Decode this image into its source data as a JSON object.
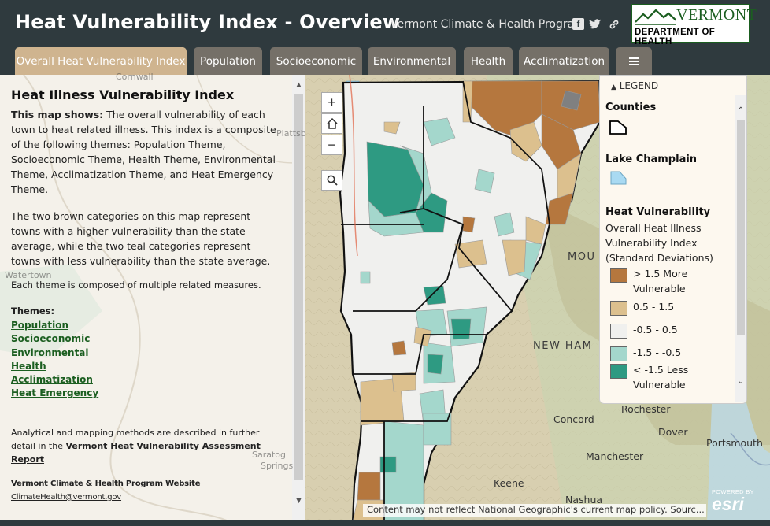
{
  "header": {
    "title": "Heat Vulnerability Index - Overview",
    "program": "Vermont Climate & Health Program",
    "social_icons": [
      "facebook-icon",
      "twitter-icon",
      "link-icon"
    ],
    "logo": {
      "top": "VERMONT",
      "bottom": "DEPARTMENT OF HEALTH"
    }
  },
  "tabs": [
    {
      "label": "Overall Heat Vulnerability Index",
      "active": true
    },
    {
      "label": "Population",
      "active": false
    },
    {
      "label": "Socioeconomic",
      "active": false
    },
    {
      "label": "Environmental",
      "active": false
    },
    {
      "label": "Health",
      "active": false
    },
    {
      "label": "Acclimatization",
      "active": false
    },
    {
      "label": "",
      "icon": "list-icon",
      "active": false
    }
  ],
  "panel": {
    "title": "Heat Illness Vulnerability Index",
    "lead_bold": "This map shows:",
    "lead_text": " The overall vulnerability of each town to heat related illness. This index is a composite of the following themes: Population Theme, Socioeconomic Theme, Health Theme, Environmental Theme, Acclimatization Theme, and Heat Emergency Theme.",
    "para2": "The two brown categories on this map represent towns with a higher vulnerability than the state average, while the two teal categories represent towns with less vulnerability than the state average.",
    "para3": "Each theme is composed of multiple related measures.",
    "themes_heading": "Themes:",
    "themes": [
      "Population",
      "Socioeconomic",
      "Environmental",
      "Health",
      "Acclimatization",
      "Heat Emergency"
    ],
    "methods_text": "Analytical and mapping methods are described in further detail in the ",
    "methods_link": "Vermont Heat Vulnerability Assessment Report",
    "website_link": "Vermont Climate & Health Program Website",
    "email_link": "ClimateHealth@vermont.gov"
  },
  "map": {
    "places": [
      "Rochester",
      "Concord",
      "Dover",
      "Portsmouth",
      "Manchester",
      "Keene",
      "Nashua",
      "NEW HAM",
      "MOU"
    ],
    "faint_places": [
      "Cornwall",
      "Plattsb",
      "Watertown",
      "Saratog",
      "Springs"
    ],
    "credit": "Content may not reflect National Geographic's current map policy. Sourc...",
    "attribution": {
      "small": "POWERED BY",
      "big": "esri"
    },
    "controls": [
      "zoom-in",
      "home",
      "zoom-out",
      "search"
    ]
  },
  "legend": {
    "title": "LEGEND",
    "counties": "Counties",
    "lake": "Lake Champlain",
    "heat_title": "Heat Vulnerability",
    "heat_sub": "Overall Heat Illness Vulnerability Index (Standard Deviations)",
    "items": [
      {
        "label": "> 1.5 More Vulnerable",
        "color": "#b5773e"
      },
      {
        "label": "0.5 - 1.5",
        "color": "#dcc08e"
      },
      {
        "label": "-0.5 - 0.5",
        "color": "#f0f0ee"
      },
      {
        "label": "-1.5 - -0.5",
        "color": "#a4d7cc"
      },
      {
        "label": "< -1.5 Less Vulnerable",
        "color": "#2e9a82"
      }
    ],
    "lake_color": "#a9daf2"
  }
}
